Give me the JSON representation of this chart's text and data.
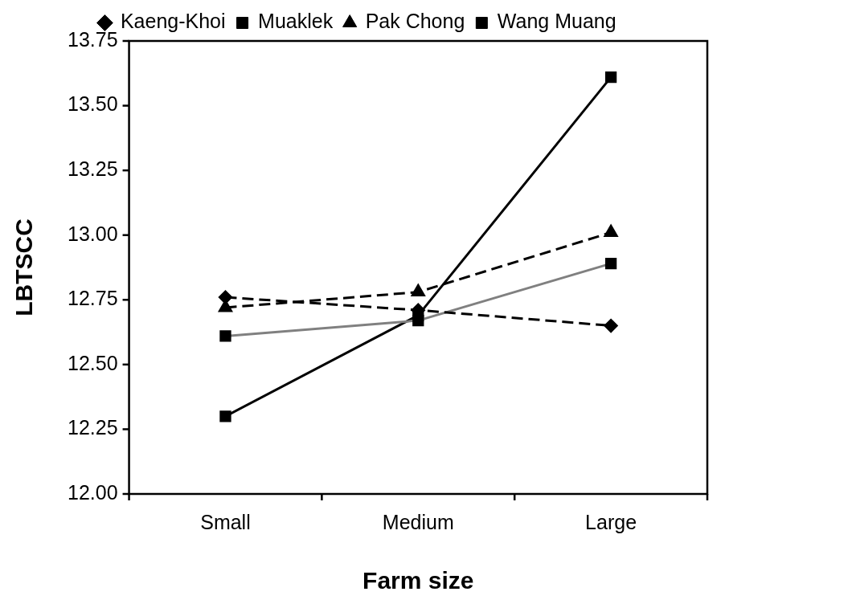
{
  "chart_data": {
    "type": "line",
    "xlabel": "Farm size",
    "ylabel": "LBTSCC",
    "categories": [
      "Small",
      "Medium",
      "Large"
    ],
    "series": [
      {
        "name": "Kaeng-Khoi",
        "color": "#000000",
        "values": [
          12.76,
          12.71,
          12.65
        ],
        "marker": "diamond",
        "line_style": "dashed"
      },
      {
        "name": "Muaklek",
        "color": "#808080",
        "values": [
          12.61,
          12.67,
          12.89
        ],
        "marker": "square",
        "line_style": "solid"
      },
      {
        "name": "Pak Chong",
        "color": "#000000",
        "values": [
          12.72,
          12.78,
          13.01
        ],
        "marker": "triangle",
        "line_style": "dashed"
      },
      {
        "name": "Wang Muang",
        "color": "#000000",
        "values": [
          12.3,
          12.69,
          13.61
        ],
        "marker": "square",
        "line_style": "solid"
      }
    ],
    "ylim": [
      12.0,
      13.75
    ],
    "yticks": [
      {
        "value": 12.0,
        "label": "12.00"
      },
      {
        "value": 12.25,
        "label": "12.25"
      },
      {
        "value": 12.5,
        "label": "12.50"
      },
      {
        "value": 12.75,
        "label": "12.75"
      },
      {
        "value": 13.0,
        "label": "13.00"
      },
      {
        "value": 13.25,
        "label": "13.25"
      },
      {
        "value": 13.5,
        "label": "13.50"
      },
      {
        "value": 13.75,
        "label": "13.75"
      }
    ],
    "grid": false,
    "legend": "top"
  }
}
